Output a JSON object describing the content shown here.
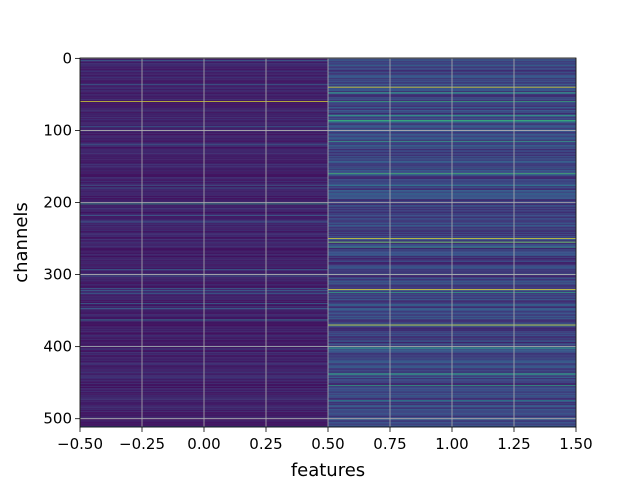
{
  "chart_data": {
    "type": "heatmap",
    "title": "",
    "xlabel": "features",
    "ylabel": "channels",
    "xlim": [
      -0.5,
      1.5
    ],
    "ylim": [
      511.5,
      -0.5
    ],
    "y_inverted": true,
    "columns": [
      0,
      1
    ],
    "rows": 512,
    "colormap": "viridis",
    "grid": true,
    "xticks": [
      -0.5,
      -0.25,
      0.0,
      0.25,
      0.5,
      0.75,
      1.0,
      1.25,
      1.5
    ],
    "xtick_labels": [
      "−0.50",
      "−0.25",
      "0.00",
      "0.25",
      "0.50",
      "0.75",
      "1.00",
      "1.25",
      "1.50"
    ],
    "yticks": [
      0,
      100,
      200,
      300,
      400,
      500
    ],
    "ytick_labels": [
      "0",
      "100",
      "200",
      "300",
      "400",
      "500"
    ],
    "column_base_level": [
      0.04,
      0.1
    ],
    "highlights": [
      {
        "column": 0,
        "row": 60,
        "value": 0.95
      },
      {
        "column": 0,
        "row": 202,
        "value": 0.55
      },
      {
        "column": 0,
        "row": 363,
        "value": 0.4
      },
      {
        "column": 0,
        "row": 400,
        "value": 0.35
      },
      {
        "column": 1,
        "row": 40,
        "value": 0.95
      },
      {
        "column": 1,
        "row": 60,
        "value": 0.6
      },
      {
        "column": 1,
        "row": 86,
        "value": 0.6
      },
      {
        "column": 1,
        "row": 160,
        "value": 0.65
      },
      {
        "column": 1,
        "row": 176,
        "value": 0.4
      },
      {
        "column": 1,
        "row": 250,
        "value": 0.95
      },
      {
        "column": 1,
        "row": 255,
        "value": 0.8
      },
      {
        "column": 1,
        "row": 262,
        "value": 0.55
      },
      {
        "column": 1,
        "row": 321,
        "value": 1.0
      },
      {
        "column": 1,
        "row": 370,
        "value": 0.95
      },
      {
        "column": 1,
        "row": 438,
        "value": 0.6
      },
      {
        "column": 1,
        "row": 475,
        "value": 0.45
      }
    ]
  }
}
